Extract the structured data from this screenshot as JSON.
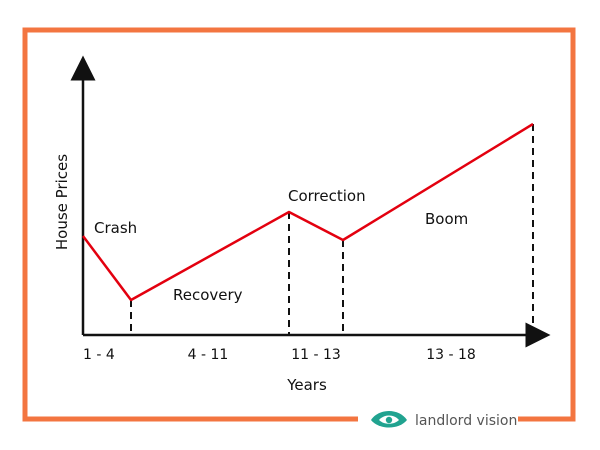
{
  "diagram": {
    "y_axis_label": "House Prices",
    "x_axis_label": "Years",
    "phases": [
      {
        "name": "Crash",
        "years": "1 - 4"
      },
      {
        "name": "Recovery",
        "years": "4 - 11"
      },
      {
        "name": "Correction",
        "years": "11 - 13"
      },
      {
        "name": "Boom",
        "years": "13 - 18"
      }
    ]
  },
  "brand": {
    "name": "landlord vision",
    "logo_icon": "eye-leaf-logo"
  },
  "colors": {
    "frame": "#f37540",
    "line": "#e3000f",
    "logo": "#21a390",
    "text": "#111111",
    "brand_text": "#555555"
  }
}
